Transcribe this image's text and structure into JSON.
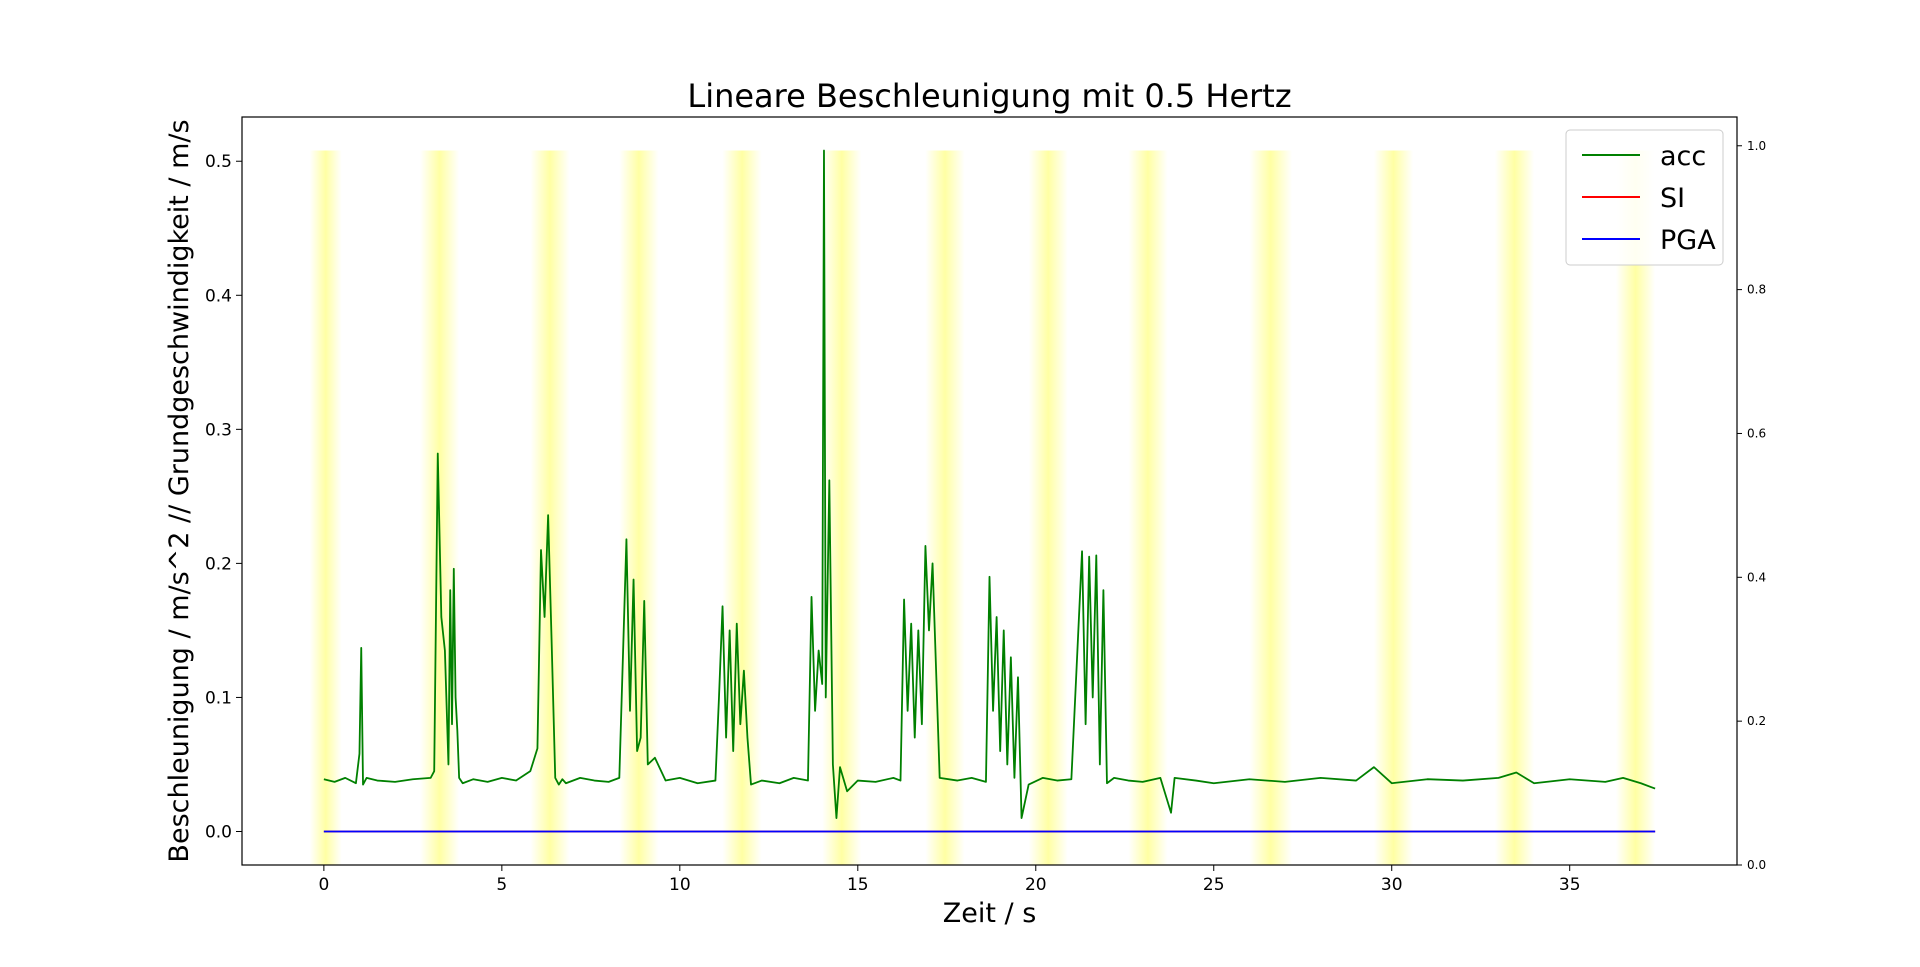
{
  "chart_data": {
    "type": "line",
    "title": "Lineare Beschleunigung mit 0.5 Hertz",
    "xlabel": "Zeit / s",
    "ylabel": "Beschleunigung / m/s^2 // Grundgeschwindigkeit / m/s",
    "xlim": [
      -2.3,
      39.7
    ],
    "ylim": [
      -0.025,
      0.533
    ],
    "y2lim": [
      0.0,
      1.04
    ],
    "xticks": [
      0,
      5,
      10,
      15,
      20,
      25,
      30,
      35
    ],
    "xtick_labels": [
      "0",
      "5",
      "10",
      "15",
      "20",
      "25",
      "30",
      "35"
    ],
    "yticks": [
      0.0,
      0.1,
      0.2,
      0.3,
      0.4,
      0.5
    ],
    "ytick_labels": [
      "0.0",
      "0.1",
      "0.2",
      "0.3",
      "0.4",
      "0.5"
    ],
    "y2ticks": [
      0.0,
      0.2,
      0.4,
      0.6,
      0.8,
      1.0
    ],
    "y2tick_labels": [
      "0.0",
      "0.2",
      "0.4",
      "0.6",
      "0.8",
      "1.0"
    ],
    "grid": false,
    "legend_position": "top-right",
    "highlight_bands": {
      "color": "#ffff99",
      "ymax": 0.508,
      "ranges": [
        [
          -0.4,
          0.5
        ],
        [
          2.7,
          3.8
        ],
        [
          5.8,
          6.9
        ],
        [
          8.3,
          9.4
        ],
        [
          11.2,
          12.3
        ],
        [
          14.0,
          15.1
        ],
        [
          16.9,
          18.0
        ],
        [
          19.8,
          20.9
        ],
        [
          22.6,
          23.7
        ],
        [
          26.0,
          27.2
        ],
        [
          29.5,
          30.6
        ],
        [
          32.9,
          34.0
        ],
        [
          36.3,
          37.4
        ]
      ]
    },
    "series": [
      {
        "name": "acc",
        "color": "#008000",
        "x": [
          0,
          0.3,
          0.6,
          0.9,
          1.0,
          1.05,
          1.1,
          1.2,
          1.5,
          2.0,
          2.5,
          3.0,
          3.1,
          3.2,
          3.3,
          3.4,
          3.5,
          3.55,
          3.6,
          3.65,
          3.7,
          3.75,
          3.8,
          3.9,
          4.2,
          4.6,
          5.0,
          5.4,
          5.8,
          6.0,
          6.1,
          6.2,
          6.3,
          6.4,
          6.5,
          6.6,
          6.7,
          6.8,
          7.2,
          7.6,
          8.0,
          8.3,
          8.5,
          8.6,
          8.7,
          8.8,
          8.9,
          9.0,
          9.1,
          9.3,
          9.6,
          10.0,
          10.5,
          11.0,
          11.1,
          11.2,
          11.3,
          11.4,
          11.5,
          11.6,
          11.7,
          11.8,
          11.9,
          12.0,
          12.3,
          12.8,
          13.2,
          13.6,
          13.7,
          13.8,
          13.9,
          14.0,
          14.05,
          14.1,
          14.2,
          14.3,
          14.4,
          14.5,
          14.7,
          15.0,
          15.5,
          16.0,
          16.2,
          16.3,
          16.4,
          16.5,
          16.6,
          16.7,
          16.8,
          16.9,
          17.0,
          17.1,
          17.3,
          17.8,
          18.2,
          18.6,
          18.7,
          18.8,
          18.9,
          19.0,
          19.1,
          19.2,
          19.3,
          19.4,
          19.5,
          19.6,
          19.8,
          20.2,
          20.6,
          21.0,
          21.3,
          21.4,
          21.5,
          21.6,
          21.7,
          21.8,
          21.9,
          22.0,
          22.2,
          22.6,
          23.0,
          23.5,
          23.8,
          23.9,
          24.5,
          25.0,
          26.0,
          27.0,
          28.0,
          29.0,
          29.5,
          30.0,
          31.0,
          32.0,
          33.0,
          33.5,
          34.0,
          35.0,
          36.0,
          36.5,
          37.0,
          37.4
        ],
        "values": [
          0.039,
          0.037,
          0.04,
          0.036,
          0.058,
          0.137,
          0.035,
          0.04,
          0.038,
          0.037,
          0.039,
          0.04,
          0.045,
          0.282,
          0.16,
          0.135,
          0.05,
          0.18,
          0.08,
          0.196,
          0.1,
          0.075,
          0.04,
          0.036,
          0.039,
          0.037,
          0.04,
          0.038,
          0.045,
          0.062,
          0.21,
          0.16,
          0.236,
          0.14,
          0.04,
          0.035,
          0.039,
          0.036,
          0.04,
          0.038,
          0.037,
          0.04,
          0.218,
          0.09,
          0.188,
          0.06,
          0.07,
          0.172,
          0.05,
          0.055,
          0.038,
          0.04,
          0.036,
          0.038,
          0.1,
          0.168,
          0.07,
          0.15,
          0.06,
          0.155,
          0.08,
          0.12,
          0.07,
          0.035,
          0.038,
          0.036,
          0.04,
          0.038,
          0.175,
          0.09,
          0.135,
          0.11,
          0.508,
          0.1,
          0.262,
          0.05,
          0.01,
          0.048,
          0.03,
          0.038,
          0.037,
          0.04,
          0.038,
          0.173,
          0.09,
          0.155,
          0.07,
          0.15,
          0.08,
          0.213,
          0.15,
          0.2,
          0.04,
          0.038,
          0.04,
          0.037,
          0.19,
          0.09,
          0.16,
          0.06,
          0.15,
          0.05,
          0.13,
          0.04,
          0.115,
          0.01,
          0.035,
          0.04,
          0.038,
          0.039,
          0.209,
          0.08,
          0.205,
          0.1,
          0.206,
          0.05,
          0.18,
          0.036,
          0.04,
          0.038,
          0.037,
          0.04,
          0.014,
          0.04,
          0.038,
          0.036,
          0.039,
          0.037,
          0.04,
          0.038,
          0.048,
          0.036,
          0.039,
          0.038,
          0.04,
          0.044,
          0.036,
          0.039,
          0.037,
          0.04,
          0.036,
          0.032
        ]
      },
      {
        "name": "SI",
        "color": "#ff0000",
        "x": [
          0,
          37.4
        ],
        "values": [
          0.0,
          0.0
        ]
      },
      {
        "name": "PGA",
        "color": "#0000ff",
        "x": [
          0,
          37.4
        ],
        "values": [
          0.0,
          0.0
        ]
      }
    ]
  }
}
